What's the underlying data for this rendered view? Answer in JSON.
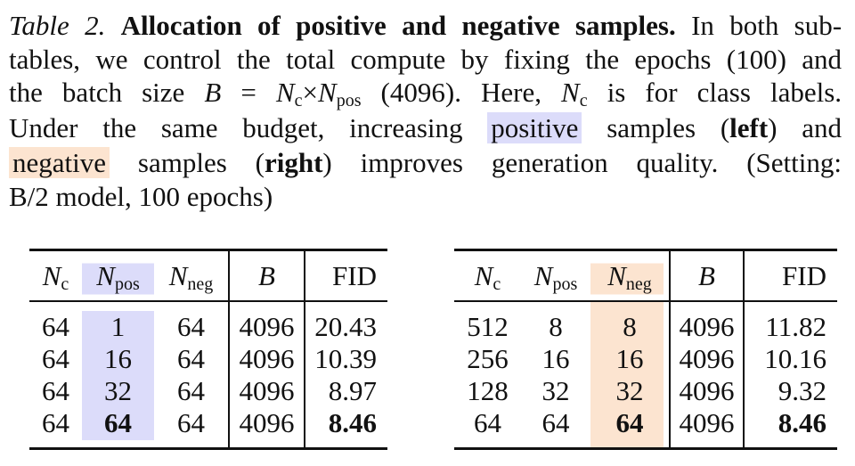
{
  "caption": {
    "label": "Table 2.",
    "title": "Allocation of positive and negative samples.",
    "l1_rest": "In both sub-",
    "l2": "tables, we control the total compute by fixing the epochs (100) and",
    "l3_a": "the batch size",
    "B": "B",
    "eq": "=",
    "N": "N",
    "c": "c",
    "times": "×",
    "pos": "pos",
    "neg": "neg",
    "l3_b": "(4096). Here,",
    "l3_c": "is for class labels.",
    "l4_a": "Under the same budget, increasing",
    "positive": "positive",
    "l4_b": "samples (",
    "left": "left",
    "l4_c": ") and",
    "negative": "negative",
    "l5_a": "samples (",
    "right": "right",
    "l5_b": ") improves generation quality. (Setting:",
    "l6": "B/2 model, 100 epochs)"
  },
  "tables": {
    "fid_header": "FID",
    "left": {
      "rows": [
        [
          "64",
          "1",
          "64",
          "4096",
          "20.43"
        ],
        [
          "64",
          "16",
          "64",
          "4096",
          "10.39"
        ],
        [
          "64",
          "32",
          "64",
          "4096",
          "8.97"
        ],
        [
          "64",
          "64",
          "64",
          "4096",
          "8.46"
        ]
      ]
    },
    "right": {
      "rows": [
        [
          "512",
          "8",
          "8",
          "4096",
          "11.82"
        ],
        [
          "256",
          "16",
          "16",
          "4096",
          "10.16"
        ],
        [
          "128",
          "32",
          "32",
          "4096",
          "9.32"
        ],
        [
          "64",
          "64",
          "64",
          "4096",
          "8.46"
        ]
      ]
    }
  }
}
